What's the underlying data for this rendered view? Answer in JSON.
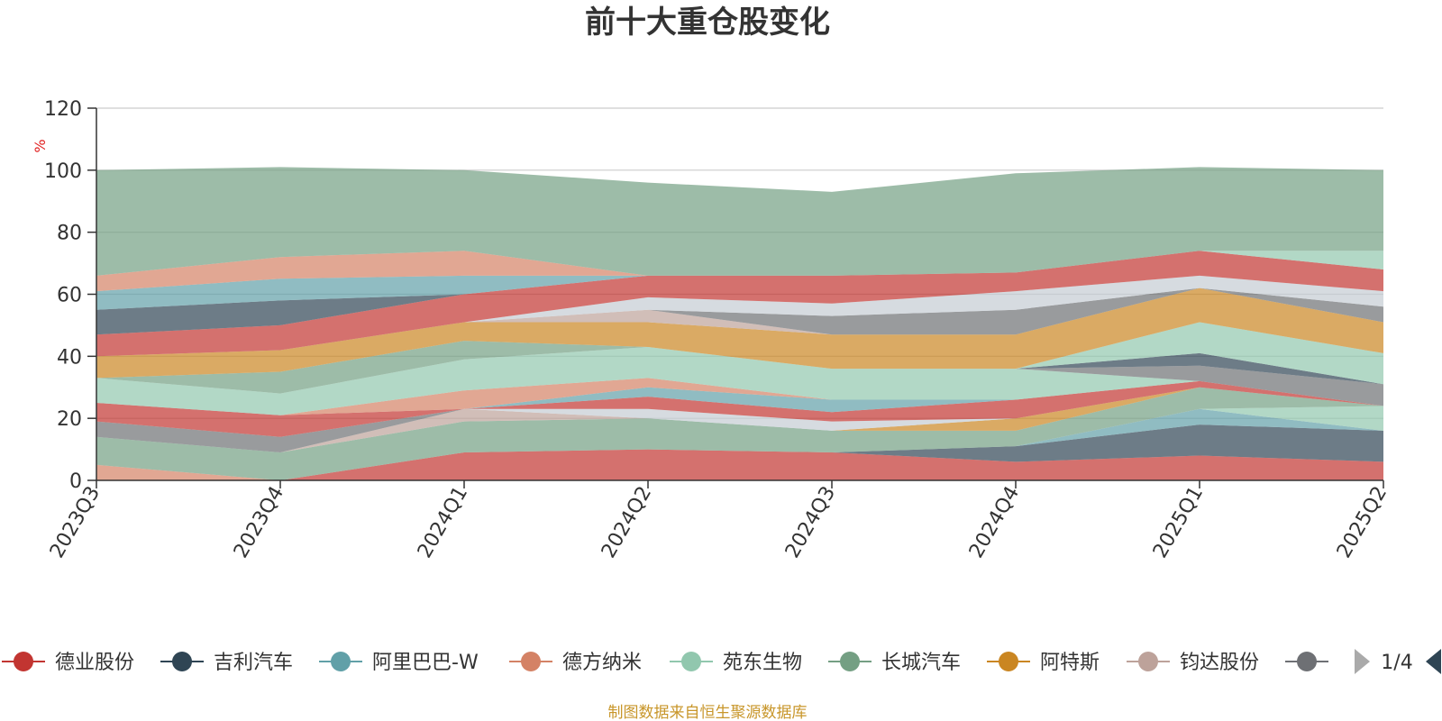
{
  "chart_data": {
    "type": "area",
    "stacked": true,
    "title": "前十大重仓股变化",
    "ylabel": "%",
    "ylim": [
      0,
      120
    ],
    "yticks": [
      0,
      20,
      40,
      60,
      80,
      100,
      120
    ],
    "grid": true,
    "legend_position": "bottom",
    "x": [
      "2023Q3",
      "2023Q4",
      "2024Q1",
      "2024Q2",
      "2024Q3",
      "2024Q4",
      "2025Q1",
      "2025Q2"
    ],
    "series": [
      {
        "name": "德业股份",
        "color": "#c23531",
        "values": [
          0,
          0,
          9,
          10,
          9,
          6,
          8,
          6
        ]
      },
      {
        "name": "吉利汽车",
        "color": "#2f4554",
        "values": [
          0,
          0,
          0,
          0,
          0,
          5,
          10,
          10
        ]
      },
      {
        "name": "阿里巴巴-W",
        "color": "#61a0a8",
        "values": [
          0,
          0,
          0,
          0,
          0,
          0,
          5,
          0
        ]
      },
      {
        "name": "德方纳米",
        "color": "#d48265",
        "values": [
          5,
          0,
          0,
          0,
          0,
          0,
          0,
          0
        ]
      },
      {
        "name": "苑东生物",
        "color": "#91c7ae",
        "values": [
          0,
          0,
          0,
          0,
          0,
          0,
          0,
          8
        ]
      },
      {
        "name": "长城汽车",
        "color": "#749f83",
        "values": [
          9,
          9,
          10,
          10,
          7,
          5,
          7,
          0
        ]
      },
      {
        "name": "阿特斯",
        "color": "#ca8622",
        "values": [
          0,
          0,
          0,
          0,
          0,
          4,
          0,
          0
        ]
      },
      {
        "name": "钧达股份",
        "color": "#bda29a",
        "values": [
          0,
          0,
          4,
          0,
          0,
          0,
          0,
          0
        ]
      },
      {
        "name": "",
        "color": "#6e7074",
        "values": [
          5,
          5,
          0,
          0,
          0,
          0,
          0,
          0
        ]
      },
      {
        "name": "",
        "color": "#546570",
        "values": [
          0,
          0,
          0,
          0,
          0,
          0,
          0,
          0
        ]
      },
      {
        "name": "",
        "color": "#c4ccd3",
        "values": [
          0,
          0,
          0,
          3,
          3,
          0,
          0,
          0
        ]
      },
      {
        "name": "",
        "color": "#c23531",
        "values": [
          6,
          7,
          0,
          4,
          3,
          6,
          2,
          0
        ]
      },
      {
        "name": "",
        "color": "#61a0a8",
        "values": [
          0,
          0,
          0,
          3,
          4,
          0,
          0,
          0
        ]
      },
      {
        "name": "",
        "color": "#d48265",
        "values": [
          0,
          0,
          6,
          3,
          0,
          0,
          0,
          0
        ]
      },
      {
        "name": "",
        "color": "#91c7ae",
        "values": [
          8,
          7,
          10,
          10,
          10,
          10,
          0,
          0
        ]
      },
      {
        "name": "",
        "color": "#749f83",
        "values": [
          0,
          7,
          6,
          0,
          0,
          0,
          0,
          0
        ]
      },
      {
        "name": "",
        "color": "#6e7074",
        "values": [
          0,
          0,
          0,
          0,
          0,
          0,
          5,
          7
        ]
      },
      {
        "name": "",
        "color": "#2f4554",
        "values": [
          0,
          0,
          0,
          0,
          0,
          0,
          4,
          0
        ]
      },
      {
        "name": "",
        "color": "#91c7ae",
        "values": [
          0,
          0,
          0,
          0,
          0,
          0,
          10,
          10
        ]
      },
      {
        "name": "",
        "color": "#ca8622",
        "values": [
          7,
          7,
          6,
          8,
          11,
          11,
          11,
          10
        ]
      },
      {
        "name": "",
        "color": "#bda29a",
        "values": [
          0,
          0,
          0,
          4,
          0,
          0,
          0,
          0
        ]
      },
      {
        "name": "",
        "color": "#6e7074",
        "values": [
          0,
          0,
          0,
          0,
          6,
          8,
          0,
          5
        ]
      },
      {
        "name": "",
        "color": "#c4ccd3",
        "values": [
          0,
          0,
          0,
          4,
          4,
          6,
          4,
          5
        ]
      },
      {
        "name": "",
        "color": "#c23531",
        "values": [
          7,
          8,
          9,
          7,
          9,
          6,
          8,
          7
        ]
      },
      {
        "name": "",
        "color": "#2f4554",
        "values": [
          8,
          8,
          0,
          0,
          0,
          0,
          0,
          0
        ]
      },
      {
        "name": "",
        "color": "#61a0a8",
        "values": [
          6,
          7,
          6,
          0,
          0,
          0,
          0,
          0
        ]
      },
      {
        "name": "",
        "color": "#d48265",
        "values": [
          5,
          7,
          8,
          0,
          0,
          0,
          0,
          0
        ]
      },
      {
        "name": "",
        "color": "#91c7ae",
        "values": [
          0,
          0,
          0,
          0,
          0,
          0,
          0,
          6
        ]
      },
      {
        "name": "",
        "color": "#749f83",
        "values": [
          34,
          29,
          26,
          30,
          27,
          32,
          27,
          26
        ]
      }
    ]
  },
  "legend": {
    "items": [
      {
        "name": "德业股份",
        "color": "#c23531"
      },
      {
        "name": "吉利汽车",
        "color": "#2f4554"
      },
      {
        "name": "阿里巴巴-W",
        "color": "#61a0a8"
      },
      {
        "name": "德方纳米",
        "color": "#d48265"
      },
      {
        "name": "苑东生物",
        "color": "#91c7ae"
      },
      {
        "name": "长城汽车",
        "color": "#749f83"
      },
      {
        "name": "阿特斯",
        "color": "#ca8622"
      },
      {
        "name": "钧达股份",
        "color": "#bda29a"
      },
      {
        "name": "",
        "color": "#6e7074"
      }
    ],
    "page_indicator": "1/4",
    "prev_icon": "triangle-left-icon",
    "next_icon": "triangle-right-icon"
  },
  "source_note": "制图数据来自恒生聚源数据库"
}
